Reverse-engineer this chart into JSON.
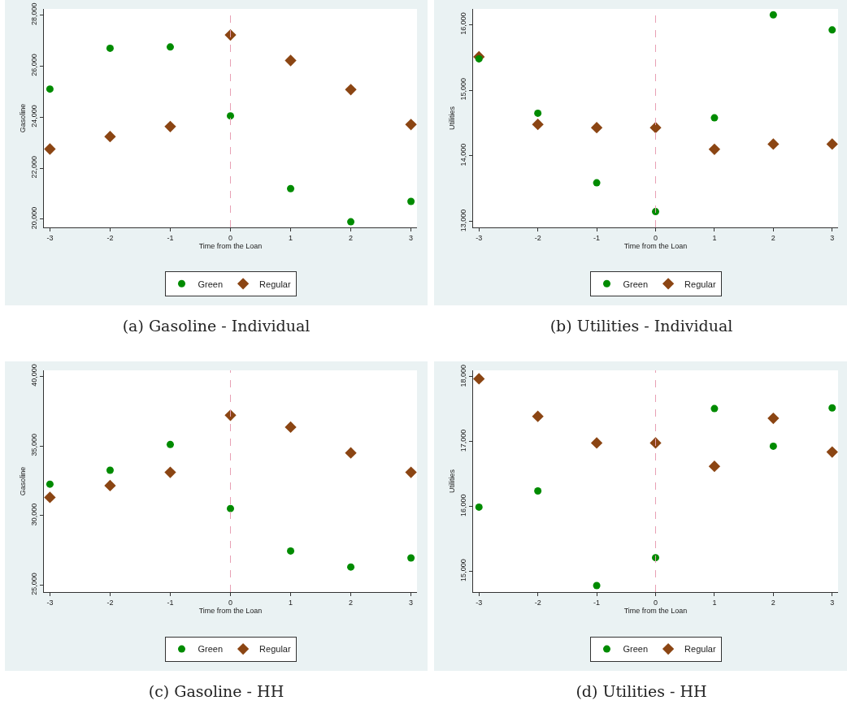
{
  "chart_data": [
    {
      "type": "scatter",
      "annotations": [
        "(a) Gasoline - Individual"
      ],
      "xlabel": "Time from the Loan",
      "ylabel": "Gasoline",
      "x": [
        -3,
        -2,
        -1,
        0,
        1,
        2,
        3
      ],
      "xlim": [
        -3.1,
        3.1
      ],
      "xticks": [
        -3,
        -2,
        -1,
        0,
        1,
        2,
        3
      ],
      "ylim": [
        19680,
        28240
      ],
      "yticks": [
        {
          "value": 20000,
          "label": "20,000"
        },
        {
          "value": 22000,
          "label": "22,000"
        },
        {
          "value": 24000,
          "label": "24,000"
        },
        {
          "value": 26000,
          "label": "26,000"
        },
        {
          "value": 28000,
          "label": "28,000"
        }
      ],
      "grid": false,
      "legend": "bottom",
      "ref_lines": [
        {
          "axis": "x",
          "value": 0,
          "label": null,
          "color": "#e8a0b4",
          "line_style": "dashed"
        }
      ],
      "series": [
        {
          "name": "Green",
          "color": "#008b00",
          "marker": "circle",
          "values": [
            25100,
            26700,
            26750,
            24050,
            21200,
            19900,
            20700
          ]
        },
        {
          "name": "Regular",
          "color": "#8b4513",
          "marker": "diamond",
          "values": [
            22750,
            23240,
            23630,
            27220,
            26220,
            25080,
            23710
          ]
        }
      ]
    },
    {
      "type": "scatter",
      "annotations": [
        "(b) Utilities - Individual"
      ],
      "xlabel": "Time from the Loan",
      "ylabel": "Utilities",
      "x": [
        -3,
        -2,
        -1,
        0,
        1,
        2,
        3
      ],
      "xlim": [
        -3.1,
        3.1
      ],
      "xticks": [
        -3,
        -2,
        -1,
        0,
        1,
        2,
        3
      ],
      "ylim": [
        12910,
        16240
      ],
      "yticks": [
        {
          "value": 13000,
          "label": "13,000"
        },
        {
          "value": 14000,
          "label": "14,000"
        },
        {
          "value": 15000,
          "label": "15,000"
        },
        {
          "value": 16000,
          "label": "16,000"
        }
      ],
      "grid": false,
      "legend": "bottom",
      "ref_lines": [
        {
          "axis": "x",
          "value": 0,
          "label": null,
          "color": "#e8a0b4",
          "line_style": "dashed"
        }
      ],
      "series": [
        {
          "name": "Green",
          "color": "#008b00",
          "marker": "circle",
          "values": [
            15480,
            14650,
            13590,
            13150,
            14580,
            16150,
            15920
          ]
        },
        {
          "name": "Regular",
          "color": "#8b4513",
          "marker": "diamond",
          "values": [
            15510,
            14480,
            14430,
            14430,
            14100,
            14180,
            14180
          ]
        }
      ]
    },
    {
      "type": "scatter",
      "annotations": [
        "(c) Gasoline - HH"
      ],
      "xlabel": "Time from the Loan",
      "ylabel": "Gasoline",
      "x": [
        -3,
        -2,
        -1,
        0,
        1,
        2,
        3
      ],
      "xlim": [
        -3.1,
        3.1
      ],
      "xticks": [
        -3,
        -2,
        -1,
        0,
        1,
        2,
        3
      ],
      "ylim": [
        24500,
        40430
      ],
      "yticks": [
        {
          "value": 25000,
          "label": "25,000"
        },
        {
          "value": 30000,
          "label": "30,000"
        },
        {
          "value": 35000,
          "label": "35,000"
        },
        {
          "value": 40000,
          "label": "40,000"
        }
      ],
      "grid": false,
      "legend": "bottom",
      "ref_lines": [
        {
          "axis": "x",
          "value": 0,
          "label": null,
          "color": "#e8a0b4",
          "line_style": "dashed"
        }
      ],
      "series": [
        {
          "name": "Green",
          "color": "#008b00",
          "marker": "circle",
          "values": [
            32250,
            33250,
            35100,
            30500,
            27450,
            26300,
            26950
          ]
        },
        {
          "name": "Regular",
          "color": "#8b4513",
          "marker": "diamond",
          "values": [
            31300,
            32150,
            33100,
            37200,
            36350,
            34500,
            33100
          ]
        }
      ]
    },
    {
      "type": "scatter",
      "annotations": [
        "(d) Utilities - HH"
      ],
      "xlabel": "Time from the Loan",
      "ylabel": "Utilities",
      "x": [
        -3,
        -2,
        -1,
        0,
        1,
        2,
        3
      ],
      "xlim": [
        -3.1,
        3.1
      ],
      "xticks": [
        -3,
        -2,
        -1,
        0,
        1,
        2,
        3
      ],
      "ylim": [
        14680,
        18100
      ],
      "yticks": [
        {
          "value": 15000,
          "label": "15,000"
        },
        {
          "value": 16000,
          "label": "16,000"
        },
        {
          "value": 17000,
          "label": "17,000"
        },
        {
          "value": 18000,
          "label": "18,000"
        }
      ],
      "grid": false,
      "legend": "bottom",
      "ref_lines": [
        {
          "axis": "x",
          "value": 0,
          "label": null,
          "color": "#e8a0b4",
          "line_style": "dashed"
        }
      ],
      "series": [
        {
          "name": "Green",
          "color": "#008b00",
          "marker": "circle",
          "values": [
            15990,
            16240,
            14780,
            15210,
            17510,
            16930,
            17520
          ]
        },
        {
          "name": "Regular",
          "color": "#8b4513",
          "marker": "diamond",
          "values": [
            17970,
            17390,
            16980,
            16980,
            16620,
            17360,
            16840
          ]
        }
      ]
    }
  ]
}
